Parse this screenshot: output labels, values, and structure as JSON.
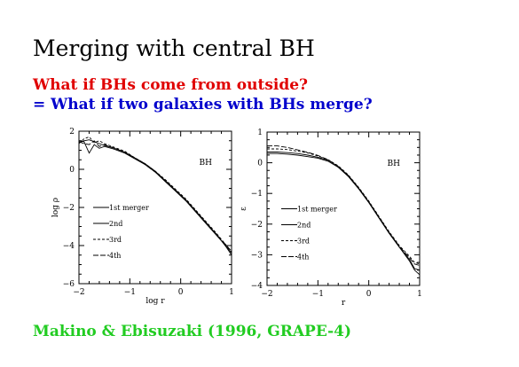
{
  "slide": {
    "title": "Merging with central BH",
    "subtitle_red": "What if BHs come from outside?",
    "subtitle_blue": "= What if two galaxies with BHs merge?",
    "citation": "Makino & Ebisuzaki (1996, GRAPE-4)",
    "colors": {
      "red": "#e00000",
      "blue": "#0000cc",
      "green": "#22cc22"
    }
  },
  "chart_data": [
    {
      "type": "line",
      "xlabel": "log r",
      "ylabel": "log ρ",
      "xlim": [
        -2,
        1
      ],
      "ylim": [
        -6,
        2
      ],
      "xticks": [
        "−2",
        "−1",
        "0",
        "1"
      ],
      "yticks": [
        "−6",
        "−4",
        "−2",
        "0",
        "2"
      ],
      "annotation": "BH",
      "legend_placement": "lower-left",
      "series": [
        {
          "name": "1st merger",
          "dash": "",
          "x": [
            -2,
            -1.9,
            -1.8,
            -1.7,
            -1.6,
            -1.5,
            -1.3,
            -1.1,
            -0.9,
            -0.7,
            -0.5,
            -0.3,
            -0.1,
            0.1,
            0.3,
            0.5,
            0.7,
            0.9,
            1
          ],
          "y": [
            1.4,
            1.5,
            1.55,
            1.45,
            1.35,
            1.25,
            1.1,
            0.9,
            0.6,
            0.3,
            -0.1,
            -0.6,
            -1.1,
            -1.6,
            -2.2,
            -2.8,
            -3.4,
            -4.1,
            -4.5
          ]
        },
        {
          "name": "2nd",
          "dash": "",
          "x": [
            -2,
            -1.9,
            -1.8,
            -1.7,
            -1.6,
            -1.5,
            -1.3,
            -1.1,
            -0.9,
            -0.7,
            -0.5,
            -0.3,
            -0.1,
            0.1,
            0.3,
            0.5,
            0.7,
            0.9,
            1
          ],
          "y": [
            1.5,
            1.45,
            0.85,
            1.3,
            1.1,
            1.2,
            1.05,
            0.85,
            0.55,
            0.25,
            -0.15,
            -0.65,
            -1.15,
            -1.65,
            -2.25,
            -2.85,
            -3.45,
            -4.05,
            -4.4
          ]
        },
        {
          "name": "3rd",
          "dash": "3,2",
          "x": [
            -2,
            -1.9,
            -1.8,
            -1.7,
            -1.6,
            -1.5,
            -1.3,
            -1.1,
            -0.9,
            -0.7,
            -0.5,
            -0.3,
            -0.1,
            0.1,
            0.3,
            0.5,
            0.7,
            0.9,
            1
          ],
          "y": [
            1.35,
            1.6,
            1.7,
            1.4,
            1.5,
            1.35,
            1.15,
            0.95,
            0.6,
            0.3,
            -0.1,
            -0.55,
            -1.05,
            -1.55,
            -2.15,
            -2.75,
            -3.35,
            -4.0,
            -4.35
          ]
        },
        {
          "name": "4th",
          "dash": "6,2",
          "x": [
            -2,
            -1.9,
            -1.8,
            -1.7,
            -1.6,
            -1.5,
            -1.3,
            -1.1,
            -0.9,
            -0.7,
            -0.5,
            -0.3,
            -0.1,
            0.1,
            0.3,
            0.5,
            0.7,
            0.9,
            1
          ],
          "y": [
            1.45,
            1.35,
            1.3,
            1.5,
            1.2,
            1.3,
            1.1,
            0.9,
            0.6,
            0.25,
            -0.15,
            -0.6,
            -1.1,
            -1.6,
            -2.2,
            -2.8,
            -3.4,
            -4.0,
            -4.3
          ]
        }
      ]
    },
    {
      "type": "line",
      "xlabel": "r",
      "ylabel": "ε",
      "xlim": [
        -2,
        1
      ],
      "ylim": [
        -4,
        1
      ],
      "xticks": [
        "−2",
        "−1",
        "0",
        "1"
      ],
      "yticks": [
        "−4",
        "−3",
        "−2",
        "−1",
        "0",
        "1"
      ],
      "annotation": "BH",
      "legend_placement": "lower-left",
      "series": [
        {
          "name": "1st merger",
          "dash": "",
          "x": [
            -2,
            -1.8,
            -1.6,
            -1.4,
            -1.2,
            -1.0,
            -0.8,
            -0.6,
            -0.4,
            -0.2,
            0,
            0.2,
            0.4,
            0.6,
            0.8,
            0.9,
            1
          ],
          "y": [
            0.3,
            0.3,
            0.28,
            0.25,
            0.2,
            0.15,
            0.05,
            -0.15,
            -0.45,
            -0.85,
            -1.3,
            -1.8,
            -2.3,
            -2.75,
            -3.15,
            -3.45,
            -3.5
          ]
        },
        {
          "name": "2nd",
          "dash": "",
          "x": [
            -2,
            -1.8,
            -1.6,
            -1.4,
            -1.2,
            -1.0,
            -0.8,
            -0.6,
            -0.4,
            -0.2,
            0,
            0.2,
            0.4,
            0.6,
            0.8,
            0.9,
            1
          ],
          "y": [
            0.35,
            0.35,
            0.33,
            0.3,
            0.25,
            0.18,
            0.08,
            -0.12,
            -0.42,
            -0.82,
            -1.28,
            -1.78,
            -2.28,
            -2.75,
            -3.2,
            -3.5,
            -3.65
          ]
        },
        {
          "name": "3rd",
          "dash": "3,2",
          "x": [
            -2,
            -1.8,
            -1.6,
            -1.4,
            -1.2,
            -1.0,
            -0.8,
            -0.6,
            -0.4,
            -0.2,
            0,
            0.2,
            0.4,
            0.6,
            0.8,
            0.9,
            1
          ],
          "y": [
            0.45,
            0.45,
            0.43,
            0.38,
            0.32,
            0.22,
            0.1,
            -0.1,
            -0.4,
            -0.8,
            -1.25,
            -1.75,
            -2.25,
            -2.7,
            -3.05,
            -3.25,
            -3.3
          ]
        },
        {
          "name": "4th",
          "dash": "6,2",
          "x": [
            -2,
            -1.8,
            -1.6,
            -1.4,
            -1.2,
            -1.0,
            -0.8,
            -0.6,
            -0.4,
            -0.2,
            0,
            0.2,
            0.4,
            0.6,
            0.8,
            0.9,
            1
          ],
          "y": [
            0.55,
            0.55,
            0.5,
            0.42,
            0.34,
            0.24,
            0.1,
            -0.12,
            -0.42,
            -0.82,
            -1.27,
            -1.77,
            -2.27,
            -2.72,
            -3.1,
            -3.3,
            -3.35
          ]
        }
      ]
    }
  ]
}
